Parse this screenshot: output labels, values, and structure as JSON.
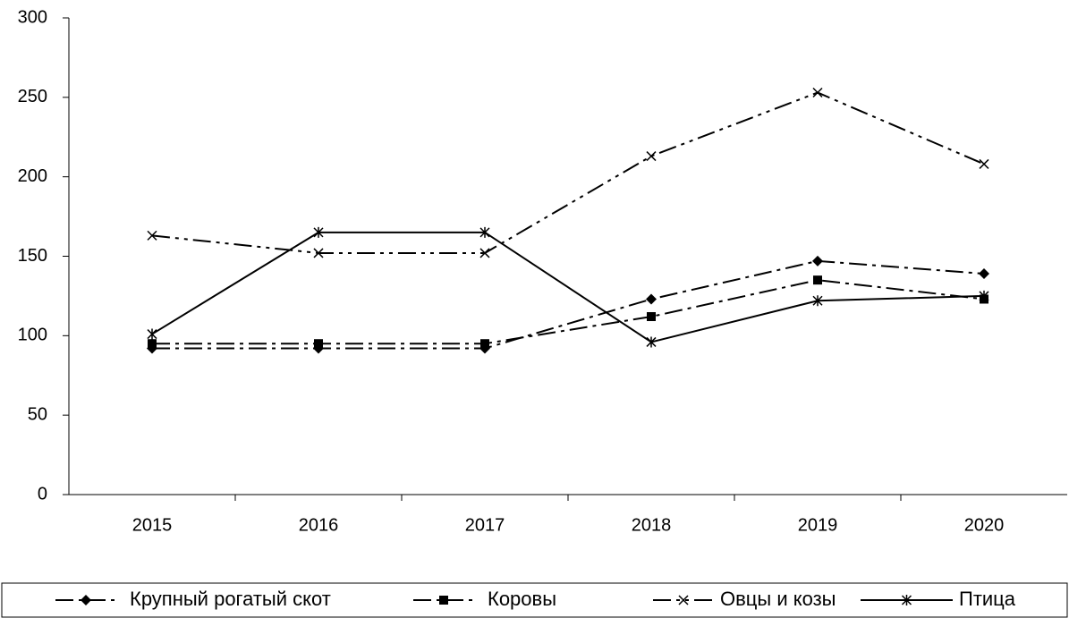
{
  "chart_data": {
    "type": "line",
    "categories": [
      "2015",
      "2016",
      "2017",
      "2018",
      "2019",
      "2020"
    ],
    "series": [
      {
        "name": "Крупный рогатый скот",
        "color": "#000000",
        "marker": "diamond",
        "dash": "dash-dot",
        "values": [
          92,
          92,
          92,
          123,
          147,
          139
        ]
      },
      {
        "name": "Коровы",
        "color": "#000000",
        "marker": "square",
        "dash": "dash-dot",
        "values": [
          95,
          95,
          95,
          112,
          135,
          123
        ]
      },
      {
        "name": "Овцы и козы",
        "color": "#000000",
        "marker": "x",
        "dash": "dash-dot-dot",
        "values": [
          163,
          152,
          152,
          213,
          253,
          208
        ]
      },
      {
        "name": "Птица",
        "color": "#000000",
        "marker": "asterisk",
        "dash": "solid",
        "values": [
          101,
          165,
          165,
          96,
          122,
          125
        ]
      }
    ],
    "ylim": [
      0,
      300
    ],
    "yticks": [
      0,
      50,
      100,
      150,
      200,
      250,
      300
    ],
    "grid": false,
    "legend": "bottom"
  }
}
